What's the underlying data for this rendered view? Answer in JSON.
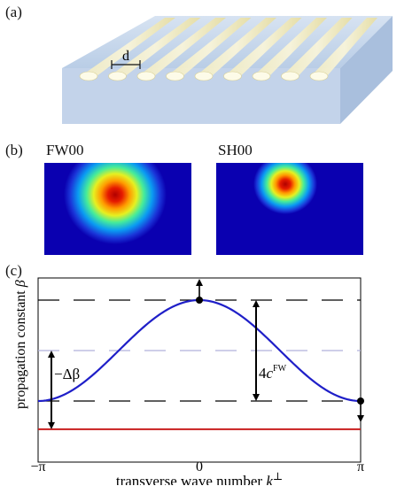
{
  "panel_a": {
    "label": "(a)",
    "spacing_label": "d",
    "waveguide_count": 9
  },
  "panel_b": {
    "label": "(b)",
    "modes": [
      {
        "title": "FW00",
        "core_color": "#b50000",
        "background": "#0a00b0"
      },
      {
        "title": "SH00",
        "core_color": "#b50000",
        "background": "#0a00b0"
      }
    ]
  },
  "panel_c": {
    "label": "(c)",
    "ylabel_text": "propagation constant ",
    "ylabel_symbol": "β",
    "xlabel_text": "transverse wave number ",
    "xlabel_symbol": "k",
    "xlabel_sup": "⊥",
    "xticks": [
      "−π",
      "0",
      "π"
    ],
    "annotation_delta": "−Δβ",
    "annotation_coupling_prefix": "4",
    "annotation_coupling_symbol": "c",
    "annotation_coupling_sup": "FW",
    "colors": {
      "band": "#1f1fc8",
      "second_harmonic": "#c81e1e",
      "dashed_mid": "#b0b0dc"
    }
  },
  "chart_data": {
    "type": "line",
    "title": "",
    "xlabel": "transverse wave number k⊥",
    "ylabel": "propagation constant β",
    "xticks": [
      "−π",
      "0",
      "π"
    ],
    "xlim": [
      -3.1416,
      3.1416
    ],
    "series": [
      {
        "x": [
          -3.1416,
          -2.3562,
          -1.5708,
          -0.7854,
          0,
          0.7854,
          1.5708,
          2.3562,
          3.1416
        ],
        "y": [
          -1,
          -0.7071,
          0,
          0.7071,
          1,
          0.7071,
          0,
          -0.7071,
          -1
        ]
      },
      {
        "x": [
          -3.1416,
          3.1416
        ],
        "y": [
          -1.56,
          -1.56
        ]
      }
    ],
    "reference_levels": [
      1,
      0,
      -1
    ]
  }
}
